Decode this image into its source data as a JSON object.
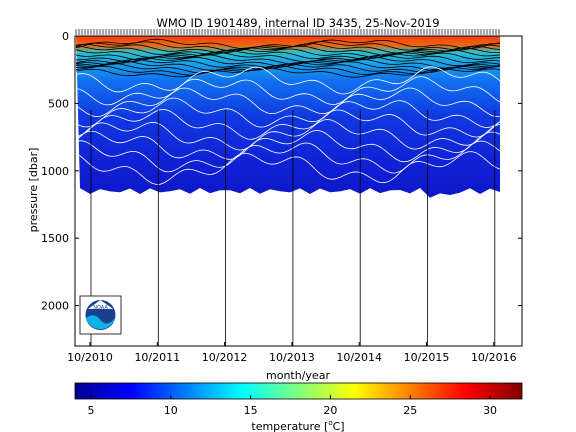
{
  "chart_data": {
    "type": "heatmap",
    "title": "WMO ID 1901489, internal ID 3435, 25-Nov-2019",
    "xlabel": "month/year",
    "ylabel": "pressure [dbar]",
    "x_ticks": [
      "10/2010",
      "10/2011",
      "10/2012",
      "10/2013",
      "10/2014",
      "10/2015",
      "10/2016"
    ],
    "x_range": [
      "2010-09",
      "2016-12"
    ],
    "y_ticks": [
      0,
      500,
      1000,
      1500,
      2000
    ],
    "ylim": [
      2300,
      0
    ],
    "y_reversed": true,
    "colorbar": {
      "label": "temperature [°C]",
      "label_prefix": "temperature [",
      "label_unit_sup": "o",
      "label_unit": "C]",
      "ticks": [
        5,
        10,
        15,
        20,
        25,
        30
      ],
      "range": [
        4,
        32
      ],
      "colormap": "jet"
    },
    "surface_temperature": 30,
    "deep_temperature": 4.5,
    "profile_depth_dbar": 1150,
    "logo": "NOAA"
  }
}
